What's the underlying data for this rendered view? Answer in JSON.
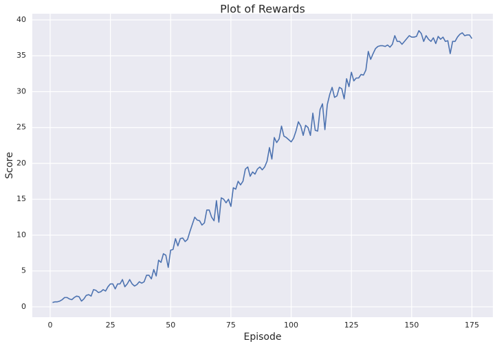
{
  "chart_data": {
    "type": "line",
    "title": "Plot of Rewards",
    "x_label": "Episode",
    "y_label": "Score",
    "x": [
      1,
      2,
      3,
      4,
      5,
      6,
      7,
      8,
      9,
      10,
      11,
      12,
      13,
      14,
      15,
      16,
      17,
      18,
      19,
      20,
      21,
      22,
      23,
      24,
      25,
      26,
      27,
      28,
      29,
      30,
      31,
      32,
      33,
      34,
      35,
      36,
      37,
      38,
      39,
      40,
      41,
      42,
      43,
      44,
      45,
      46,
      47,
      48,
      49,
      50,
      51,
      52,
      53,
      54,
      55,
      56,
      57,
      58,
      59,
      60,
      61,
      62,
      63,
      64,
      65,
      66,
      67,
      68,
      69,
      70,
      71,
      72,
      73,
      74,
      75,
      76,
      77,
      78,
      79,
      80,
      81,
      82,
      83,
      84,
      85,
      86,
      87,
      88,
      89,
      90,
      91,
      92,
      93,
      94,
      95,
      96,
      97,
      98,
      99,
      100,
      101,
      102,
      103,
      104,
      105,
      106,
      107,
      108,
      109,
      110,
      111,
      112,
      113,
      114,
      115,
      116,
      117,
      118,
      119,
      120,
      121,
      122,
      123,
      124,
      125,
      126,
      127,
      128,
      129,
      130,
      131,
      132,
      133,
      134,
      135,
      136,
      137,
      138,
      139,
      140,
      141,
      142,
      143,
      144,
      145,
      146,
      147,
      148,
      149,
      150,
      151,
      152,
      153,
      154,
      155,
      156,
      157,
      158,
      159,
      160,
      161,
      162,
      163,
      164,
      165,
      166,
      167,
      168,
      169,
      170,
      171,
      172,
      173,
      174,
      175
    ],
    "series": [
      {
        "color": "#4c72b0",
        "values": [
          0.6,
          0.7,
          0.7,
          0.8,
          1.0,
          1.3,
          1.3,
          1.1,
          1.0,
          1.3,
          1.5,
          1.4,
          0.8,
          1.1,
          1.6,
          1.7,
          1.5,
          2.4,
          2.3,
          2.0,
          2.1,
          2.4,
          2.2,
          2.8,
          3.2,
          3.2,
          2.5,
          3.2,
          3.2,
          3.8,
          2.8,
          3.2,
          3.8,
          3.2,
          2.9,
          3.1,
          3.5,
          3.3,
          3.5,
          4.4,
          4.4,
          3.9,
          5.2,
          4.3,
          6.5,
          6.2,
          7.4,
          7.2,
          5.5,
          7.9,
          8.0,
          9.5,
          8.5,
          9.5,
          9.6,
          9.1,
          9.4,
          10.5,
          11.5,
          12.5,
          12.1,
          12.0,
          11.4,
          11.7,
          13.5,
          13.5,
          12.5,
          12.0,
          14.8,
          11.8,
          15.2,
          15.0,
          14.5,
          15.0,
          14.0,
          16.6,
          16.4,
          17.5,
          17.0,
          17.5,
          19.2,
          19.5,
          18.2,
          18.8,
          18.5,
          19.2,
          19.5,
          19.1,
          19.5,
          20.3,
          22.2,
          20.6,
          23.6,
          22.9,
          23.4,
          25.2,
          23.8,
          23.6,
          23.3,
          23.0,
          23.5,
          24.5,
          25.8,
          25.2,
          23.9,
          25.3,
          25.0,
          23.9,
          27.0,
          24.6,
          24.5,
          27.5,
          28.3,
          24.7,
          28.2,
          29.6,
          30.6,
          29.2,
          29.4,
          30.6,
          30.4,
          29.0,
          31.8,
          30.7,
          32.7,
          31.5,
          31.9,
          31.9,
          32.4,
          32.3,
          33.0,
          35.6,
          34.5,
          35.3,
          36.0,
          36.3,
          36.4,
          36.4,
          36.3,
          36.5,
          36.2,
          36.6,
          37.8,
          37.0,
          37.0,
          36.6,
          37.0,
          37.4,
          37.8,
          37.6,
          37.6,
          37.7,
          38.5,
          38.1,
          37.0,
          37.8,
          37.3,
          37.0,
          37.5,
          36.7,
          37.7,
          37.3,
          37.6,
          37.0,
          37.1,
          35.3,
          37.0,
          37.0,
          37.6,
          38.0,
          38.2,
          37.8,
          37.9,
          37.9,
          37.4
        ]
      }
    ],
    "xlim": [
      -7.4,
      183.7
    ],
    "xticks": [
      0,
      25,
      50,
      75,
      100,
      125,
      150,
      175
    ],
    "ylim": [
      -1.44,
      40.86
    ],
    "yticks": [
      0,
      5,
      10,
      15,
      20,
      25,
      30,
      35,
      40
    ],
    "grid": true,
    "background": "#eaeaf2"
  }
}
